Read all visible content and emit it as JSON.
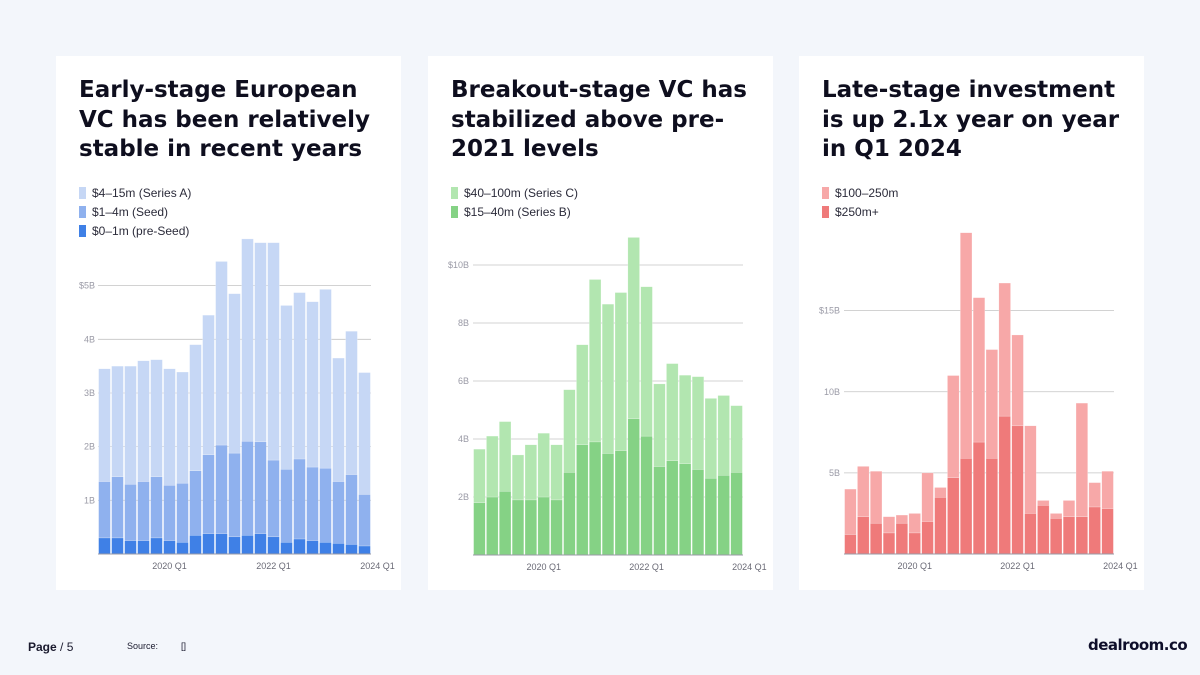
{
  "charts": [
    {
      "type": "bar",
      "stacked": true,
      "title": "Early-stage European VC has been relatively stable in recent years",
      "legend": [
        {
          "label": "$4–15m (Series A)",
          "color": "#c6d7f5"
        },
        {
          "label": "$1–4m (Seed)",
          "color": "#8fb1ee"
        },
        {
          "label": "$0–1m (pre-Seed)",
          "color": "#3f80e6"
        }
      ],
      "x_ticks": [
        {
          "index": 5,
          "label": "2020 Q1"
        },
        {
          "index": 13,
          "label": "2022 Q1"
        },
        {
          "index": 21,
          "label": "2024 Q1"
        }
      ],
      "y_ticks": [
        {
          "value": 1,
          "label": "1B"
        },
        {
          "value": 2,
          "label": "2B"
        },
        {
          "value": 3,
          "label": "3B"
        },
        {
          "value": 4,
          "label": "4B"
        },
        {
          "value": 5,
          "label": "$5B"
        }
      ],
      "ylim": [
        0,
        5.85
      ],
      "series": [
        {
          "name": "$0–1m (pre-Seed)",
          "color": "#3f80e6",
          "values": [
            0.3,
            0.3,
            0.25,
            0.25,
            0.3,
            0.25,
            0.22,
            0.35,
            0.38,
            0.38,
            0.32,
            0.35,
            0.38,
            0.32,
            0.22,
            0.28,
            0.25,
            0.22,
            0.2,
            0.18,
            0.15
          ]
        },
        {
          "name": "$1–4m (Seed)",
          "color": "#8fb1ee",
          "values": [
            1.05,
            1.14,
            1.05,
            1.1,
            1.14,
            1.03,
            1.1,
            1.2,
            1.47,
            1.65,
            1.56,
            1.75,
            1.71,
            1.43,
            1.36,
            1.49,
            1.37,
            1.38,
            1.15,
            1.3,
            0.96
          ]
        },
        {
          "name": "$4–15m (Series A)",
          "color": "#c6d7f5",
          "values": [
            2.1,
            2.06,
            2.2,
            2.25,
            2.18,
            2.17,
            2.07,
            2.35,
            2.6,
            3.42,
            2.97,
            3.77,
            3.71,
            4.05,
            3.05,
            3.1,
            3.08,
            3.33,
            2.3,
            2.67,
            2.27
          ]
        }
      ]
    },
    {
      "type": "bar",
      "stacked": true,
      "title": "Breakout-stage VC has stabilized above pre-2021 levels",
      "legend": [
        {
          "label": "$40–100m (Series C)",
          "color": "#b2e6b0"
        },
        {
          "label": "$15–40m (Series B)",
          "color": "#85d285"
        }
      ],
      "x_ticks": [
        {
          "index": 5,
          "label": "2020 Q1"
        },
        {
          "index": 13,
          "label": "2022 Q1"
        },
        {
          "index": 21,
          "label": "2024 Q1"
        }
      ],
      "y_ticks": [
        {
          "value": 2,
          "label": "2B"
        },
        {
          "value": 4,
          "label": "4B"
        },
        {
          "value": 6,
          "label": "6B"
        },
        {
          "value": 8,
          "label": "8B"
        },
        {
          "value": 10,
          "label": "$10B"
        }
      ],
      "ylim": [
        0,
        11
      ],
      "series": [
        {
          "name": "$15–40m (Series B)",
          "color": "#85d285",
          "values": [
            1.8,
            2.0,
            2.2,
            1.9,
            1.9,
            2.0,
            1.9,
            2.85,
            3.8,
            3.9,
            3.5,
            3.6,
            4.7,
            4.1,
            3.05,
            3.25,
            3.15,
            2.95,
            2.65,
            2.75,
            2.85
          ]
        },
        {
          "name": "$40–100m (Series C)",
          "color": "#b2e6b0",
          "values": [
            1.85,
            2.1,
            2.4,
            1.55,
            1.9,
            2.2,
            1.9,
            2.85,
            3.45,
            5.6,
            5.15,
            5.45,
            6.25,
            5.15,
            2.85,
            3.35,
            3.05,
            3.2,
            2.75,
            2.75,
            2.3
          ]
        }
      ]
    },
    {
      "type": "bar",
      "stacked": true,
      "title": "Late-stage investment is up 2.1x year on year in Q1 2024",
      "legend": [
        {
          "label": "$100–250m",
          "color": "#f7a8a8"
        },
        {
          "label": "$250m+",
          "color": "#ef7a7a"
        }
      ],
      "x_ticks": [
        {
          "index": 5,
          "label": "2020 Q1"
        },
        {
          "index": 13,
          "label": "2022 Q1"
        },
        {
          "index": 21,
          "label": "2024 Q1"
        }
      ],
      "y_ticks": [
        {
          "value": 5,
          "label": "5B"
        },
        {
          "value": 10,
          "label": "10B"
        },
        {
          "value": 15,
          "label": "$15B"
        }
      ],
      "ylim": [
        0,
        19.6
      ],
      "series": [
        {
          "name": "$250m+",
          "color": "#ef7a7a",
          "values": [
            1.2,
            2.3,
            1.9,
            1.3,
            1.9,
            1.3,
            2.0,
            3.5,
            4.7,
            5.9,
            6.9,
            5.9,
            8.5,
            7.9,
            2.5,
            3.0,
            2.2,
            2.3,
            2.3,
            2.9,
            2.8
          ]
        },
        {
          "name": "$100–250m",
          "color": "#f7a8a8",
          "values": [
            2.8,
            3.1,
            3.2,
            1.0,
            0.5,
            1.2,
            3.0,
            0.6,
            6.3,
            13.9,
            8.9,
            6.7,
            8.2,
            5.6,
            5.4,
            0.3,
            0.3,
            1.0,
            7.0,
            1.5,
            2.3
          ]
        }
      ]
    }
  ],
  "footer": {
    "page": "Page",
    "page_total": "/ 5",
    "source_label": "Source:",
    "source_value": "[]",
    "brand": "dealroom.co"
  }
}
